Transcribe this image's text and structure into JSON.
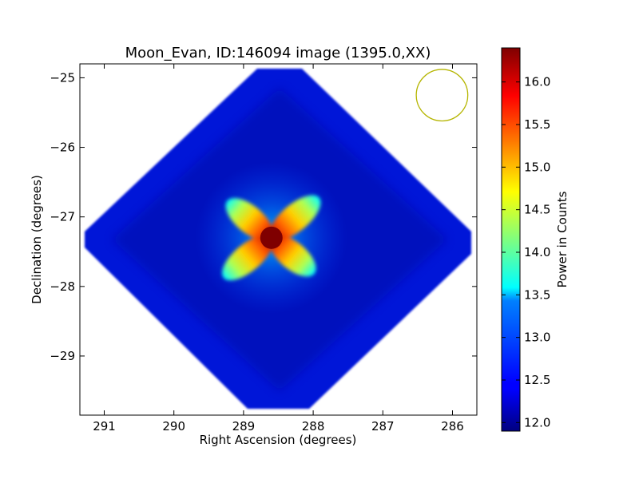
{
  "chart_data": {
    "type": "heatmap",
    "title": "Moon_Evan, ID:146094 image (1395.0,XX)",
    "xlabel": "Right Ascension (degrees)",
    "ylabel": "Declination (degrees)",
    "xlim": [
      291.35,
      285.65
    ],
    "ylim": [
      -29.85,
      -24.8
    ],
    "x_ticks": [
      291,
      290,
      289,
      288,
      287,
      286
    ],
    "x_tick_labels": [
      "291",
      "290",
      "289",
      "288",
      "287",
      "286"
    ],
    "y_ticks": [
      -25,
      -26,
      -27,
      -28,
      -29
    ],
    "y_tick_labels": [
      "−25",
      "−26",
      "−27",
      "−28",
      "−29"
    ],
    "colorbar": {
      "label": "Power in Counts",
      "range": [
        11.9,
        16.4
      ],
      "ticks": [
        12.0,
        12.5,
        13.0,
        13.5,
        14.0,
        14.5,
        15.0,
        15.5,
        16.0
      ],
      "tick_labels": [
        "12.0",
        "12.5",
        "13.0",
        "13.5",
        "14.0",
        "14.5",
        "15.0",
        "15.5",
        "16.0"
      ],
      "colormap": "jet"
    },
    "field": {
      "shape": "diamond",
      "center": [
        288.55,
        -27.3
      ],
      "half_width_ra": 2.85,
      "half_height_dec": 2.5,
      "background_value": 12.1
    },
    "peak": {
      "center": [
        288.6,
        -27.3
      ],
      "value": 16.3
    },
    "beam_circle": {
      "center": [
        286.15,
        -25.25
      ],
      "radius_deg": 0.37,
      "color": "#b5b500"
    },
    "grid": false
  }
}
